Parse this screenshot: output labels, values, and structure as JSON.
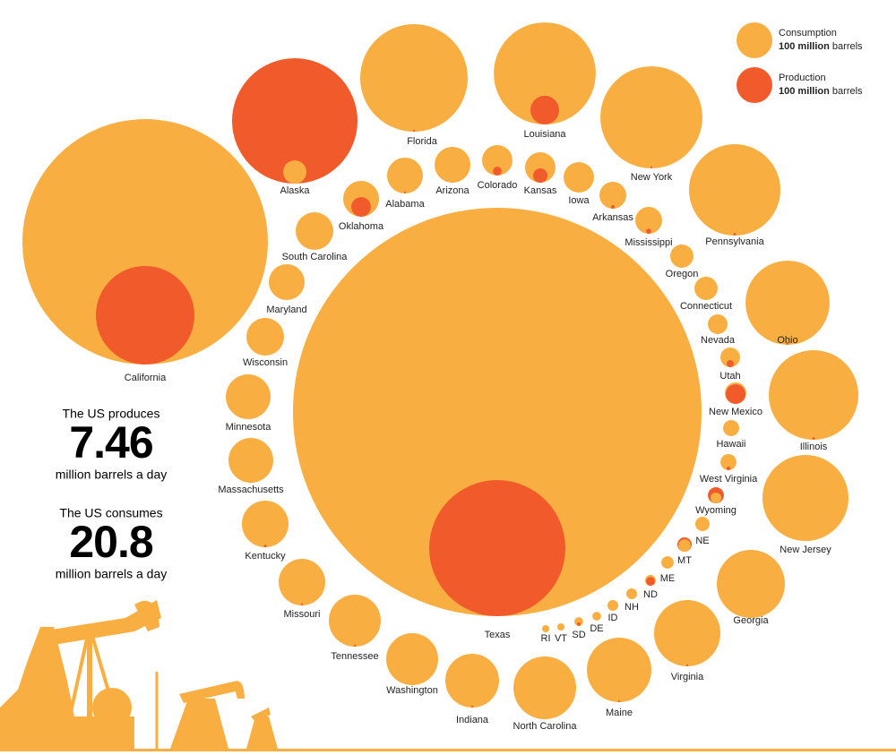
{
  "chart_data": {
    "type": "bubble",
    "categories": [
      "California",
      "Alaska",
      "Florida",
      "Louisiana",
      "New York",
      "Pennsylvania",
      "Ohio",
      "Illinois",
      "New Jersey",
      "Georgia",
      "Virginia",
      "Maine",
      "North Carolina",
      "Indiana",
      "Washington",
      "Tennessee",
      "Missouri",
      "Kentucky",
      "Massachusetts",
      "Minnesota",
      "Wisconsin",
      "Maryland",
      "South Carolina",
      "Oklahoma",
      "Alabama",
      "Arizona",
      "Colorado",
      "Kansas",
      "Iowa",
      "Arkansas",
      "Mississippi",
      "Oregon",
      "Connecticut",
      "Nevada",
      "Utah",
      "New Mexico",
      "Hawaii",
      "West Virginia",
      "Wyoming",
      "NE",
      "MT",
      "ME",
      "ND",
      "NH",
      "ID",
      "DE",
      "SD",
      "VT",
      "RI",
      "Texas"
    ],
    "series": [
      {
        "name": "Consumption",
        "color": "#f9ae41",
        "values": [
          4690,
          42,
          900,
          810,
          810,
          650,
          550,
          625,
          576,
          361,
          342,
          324,
          306,
          225,
          210,
          210,
          169,
          169,
          156,
          156,
          110,
          100,
          110,
          100,
          100,
          100,
          72,
          72,
          72,
          56,
          56,
          42,
          42,
          30,
          30,
          36,
          20,
          20,
          9,
          16,
          12,
          12,
          9,
          9,
          9,
          6,
          6,
          4,
          4,
          13000
        ]
      },
      {
        "name": "Production",
        "color": "#f15a2b",
        "values": [
          756,
          1225,
          0.3,
          64,
          0.3,
          0.5,
          0.5,
          0.5,
          0,
          0,
          0.3,
          0.3,
          0,
          0.3,
          0,
          0.3,
          0.3,
          0.5,
          0,
          0,
          0,
          0,
          0,
          30,
          0.3,
          0,
          6,
          16,
          0,
          1,
          2,
          0,
          0,
          0,
          4,
          30,
          0,
          1,
          20,
          0,
          16,
          0,
          6,
          0,
          0,
          0,
          1,
          0,
          0,
          1444
        ]
      }
    ],
    "legend_size": {
      "value": 100,
      "label": "100 million"
    },
    "legend_unit": "barrels",
    "stats": [
      {
        "lead": "The US produces",
        "value": 7.46,
        "unit": "million barrels a day"
      },
      {
        "lead": "The US consumes",
        "value": 20.8,
        "unit": "million barrels a day"
      }
    ]
  }
}
